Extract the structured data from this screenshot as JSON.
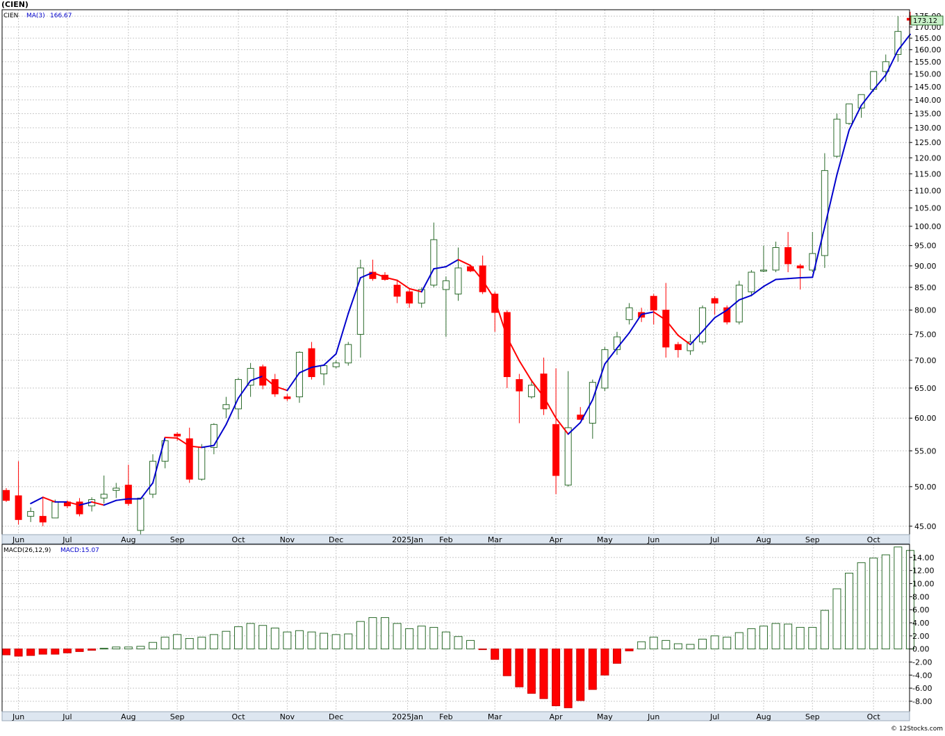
{
  "title": "(CIEN)",
  "credit": "© 12Stocks.com",
  "colors": {
    "up": "#2a6a2a",
    "down": "#ff0000",
    "ma_up": "#0000cc",
    "ma_down": "#ff0000",
    "grid": "#c8c8c8",
    "axisbar": "#dde6f0",
    "last_price_bg": "#c8f0c8"
  },
  "price_panel": {
    "legend": {
      "symbol": "CIEN",
      "ma_label": "MA(3)",
      "ma_value": "166.67"
    },
    "last_price": "173.12",
    "y_ticks": [
      "45.00",
      "50.00",
      "55.00",
      "60.00",
      "65.00",
      "70.00",
      "75.00",
      "80.00",
      "85.00",
      "90.00",
      "95.00",
      "100.00",
      "105.00",
      "110.00",
      "115.00",
      "120.00",
      "125.00",
      "130.00",
      "135.00",
      "140.00",
      "145.00",
      "150.00",
      "155.00",
      "160.00",
      "165.00",
      "170.00",
      "175.00"
    ]
  },
  "macd_panel": {
    "legend": {
      "label": "MACD(26,12,9)",
      "value_label": "MACD:15.07"
    },
    "y_ticks": [
      "-8.00",
      "-6.00",
      "-4.00",
      "-2.00",
      "0.00",
      "2.00",
      "4.00",
      "6.00",
      "8.00",
      "10.00",
      "12.00",
      "14.00"
    ]
  },
  "x_labels": [
    {
      "label": "Jun",
      "i": 1
    },
    {
      "label": "Jul",
      "i": 5
    },
    {
      "label": "Aug",
      "i": 10
    },
    {
      "label": "Sep",
      "i": 14
    },
    {
      "label": "Oct",
      "i": 19
    },
    {
      "label": "Nov",
      "i": 23
    },
    {
      "label": "Dec",
      "i": 27
    },
    {
      "label": "2025Jan",
      "i": 32
    },
    {
      "label": "Feb",
      "i": 36
    },
    {
      "label": "Mar",
      "i": 40
    },
    {
      "label": "Apr",
      "i": 45
    },
    {
      "label": "May",
      "i": 49
    },
    {
      "label": "Jun",
      "i": 53
    },
    {
      "label": "Jul",
      "i": 58
    },
    {
      "label": "Aug",
      "i": 62
    },
    {
      "label": "Sep",
      "i": 66
    },
    {
      "label": "Oct",
      "i": 71
    }
  ],
  "chart_data": {
    "type": "candlestick",
    "symbol": "CIEN",
    "scale": "log",
    "ylim": [
      44,
      178
    ],
    "candles": [
      [
        49.5,
        49.8,
        48,
        48.2
      ],
      [
        48.8,
        53.5,
        45.2,
        45.8
      ],
      [
        46.2,
        47.3,
        45.5,
        46.8
      ],
      [
        46.2,
        48.5,
        45,
        45.5
      ],
      [
        46,
        48.3,
        46,
        48
      ],
      [
        48,
        48.2,
        47.2,
        47.5
      ],
      [
        48,
        48.5,
        46.2,
        46.5
      ],
      [
        47.5,
        48.6,
        46.8,
        48.3
      ],
      [
        48.5,
        51.5,
        47.8,
        49
      ],
      [
        49.5,
        50.5,
        48.5,
        49.8
      ],
      [
        50.2,
        53,
        47.5,
        47.8
      ],
      [
        44.5,
        48.5,
        44,
        48.5
      ],
      [
        49,
        54.5,
        48.5,
        53.5
      ],
      [
        53.5,
        56.8,
        52.5,
        56.5
      ],
      [
        57.5,
        57.8,
        56.5,
        57.2
      ],
      [
        56.8,
        58.5,
        50.5,
        51
      ],
      [
        51,
        56,
        50.8,
        55.5
      ],
      [
        55.5,
        59.2,
        54.5,
        59
      ],
      [
        61.5,
        63.5,
        60,
        62.2
      ],
      [
        61.5,
        66.8,
        59.8,
        66.5
      ],
      [
        65.5,
        69.5,
        63.5,
        68.5
      ],
      [
        68.8,
        69.2,
        64.8,
        65.5
      ],
      [
        66.5,
        67.5,
        63.5,
        64
      ],
      [
        63.5,
        64,
        62.8,
        63.2
      ],
      [
        63.5,
        71.7,
        62.5,
        71.5
      ],
      [
        72.2,
        73.5,
        66.5,
        67
      ],
      [
        67.5,
        69,
        65.5,
        69
      ],
      [
        68.8,
        70,
        68.5,
        69.5
      ],
      [
        69.5,
        73.5,
        69,
        73
      ],
      [
        75,
        91.5,
        70.5,
        89.5
      ],
      [
        88.5,
        91.5,
        86.5,
        87
      ],
      [
        87.8,
        88.5,
        86.5,
        86.8
      ],
      [
        85.5,
        86.5,
        81.5,
        83
      ],
      [
        84,
        84.5,
        80.5,
        81.5
      ],
      [
        81.5,
        85,
        80.5,
        84.5
      ],
      [
        85.5,
        101,
        85,
        96.5
      ],
      [
        84.5,
        87.5,
        74.5,
        86.5
      ],
      [
        83.5,
        94.5,
        82,
        89.5
      ],
      [
        89.8,
        90.2,
        88.5,
        88.8
      ],
      [
        90,
        92.5,
        83.5,
        84
      ],
      [
        83.5,
        84,
        75.5,
        79.5
      ],
      [
        79.5,
        80,
        65,
        67
      ],
      [
        66.5,
        67.5,
        59.2,
        64.5
      ],
      [
        63.5,
        66.5,
        63.2,
        65.5
      ],
      [
        67.5,
        70.5,
        60.5,
        61.5
      ],
      [
        59,
        68.5,
        49,
        51.5
      ],
      [
        50.2,
        68,
        50,
        58.5
      ],
      [
        60.5,
        61.8,
        59.8,
        59.8
      ],
      [
        59.2,
        66.5,
        56.8,
        66
      ],
      [
        65,
        72.5,
        64.5,
        72
      ],
      [
        72,
        75.5,
        71,
        74.5
      ],
      [
        78,
        81.5,
        77,
        80.5
      ],
      [
        79.5,
        80.5,
        77.5,
        78.5
      ],
      [
        83,
        83.5,
        77,
        80
      ],
      [
        80,
        86,
        70.5,
        72.5
      ],
      [
        73,
        73.5,
        70.5,
        72
      ],
      [
        71.8,
        75,
        71,
        73.5
      ],
      [
        73.5,
        81,
        73,
        80.5
      ],
      [
        82.5,
        83,
        79,
        81.5
      ],
      [
        80.5,
        81,
        77,
        77.5
      ],
      [
        77.5,
        86.5,
        77,
        85.5
      ],
      [
        84,
        89,
        83,
        88.5
      ],
      [
        89,
        95,
        88.5,
        89
      ],
      [
        89,
        96,
        88.5,
        94.5
      ],
      [
        94.5,
        98.5,
        88.5,
        90.5
      ],
      [
        90,
        90.5,
        84.5,
        89.5
      ],
      [
        89,
        98.5,
        88.5,
        93
      ],
      [
        92.5,
        121.5,
        89.5,
        116
      ],
      [
        120.5,
        135,
        120,
        133
      ],
      [
        131.5,
        138.5,
        131,
        138.5
      ],
      [
        137,
        142,
        133.5,
        142
      ],
      [
        144,
        151,
        143,
        151
      ],
      [
        151,
        158,
        147,
        155
      ],
      [
        158,
        175,
        155,
        168
      ],
      [
        174,
        177,
        171,
        173.12
      ]
    ],
    "ma3": [
      null,
      null,
      47.8,
      48.6,
      48.0,
      48.0,
      47.6,
      48.0,
      47.6,
      48.2,
      48.4,
      48.4,
      50.5,
      57.0,
      56.9,
      55.7,
      55.5,
      55.8,
      59.0,
      63.3,
      66.3,
      67.1,
      65.3,
      64.6,
      67.7,
      68.7,
      69.1,
      71.2,
      79.3,
      87.2,
      88.4,
      87.3,
      86.6,
      84.7,
      84.0,
      89.3,
      89.8,
      91.5,
      90.1,
      86.6,
      82.3,
      74.4,
      69.9,
      66.3,
      63.5,
      60.0,
      57.5,
      59.3,
      63.0,
      69.3,
      72.3,
      75.3,
      79.1,
      79.6,
      77.9,
      74.8,
      73.0,
      75.6,
      78.4,
      80.0,
      82.2,
      83.2,
      85.2,
      86.8,
      87.0,
      87.2,
      87.3,
      99.8,
      114.7,
      129.2,
      138.0,
      143.9,
      149.6,
      159.8,
      166.67
    ],
    "macd": [
      -0.9,
      -1.1,
      -1.0,
      -0.8,
      -0.8,
      -0.6,
      -0.4,
      -0.2,
      0.1,
      0.3,
      0.3,
      0.4,
      1.0,
      1.8,
      2.2,
      1.6,
      1.8,
      2.2,
      2.7,
      3.4,
      3.9,
      3.6,
      3.2,
      2.6,
      2.8,
      2.6,
      2.4,
      2.2,
      2.3,
      4.2,
      4.8,
      4.8,
      3.9,
      3.1,
      3.5,
      3.3,
      2.6,
      1.9,
      1.3,
      -0.1,
      -1.6,
      -4.1,
      -5.8,
      -6.8,
      -7.6,
      -8.7,
      -9.0,
      -7.9,
      -6.2,
      -4.0,
      -2.2,
      -0.3,
      1.1,
      1.8,
      1.3,
      0.8,
      0.7,
      1.5,
      2.0,
      1.8,
      2.5,
      3.1,
      3.5,
      3.9,
      3.8,
      3.3,
      3.3,
      5.9,
      9.2,
      11.6,
      13.2,
      13.9,
      14.4,
      15.6,
      15.07
    ]
  }
}
